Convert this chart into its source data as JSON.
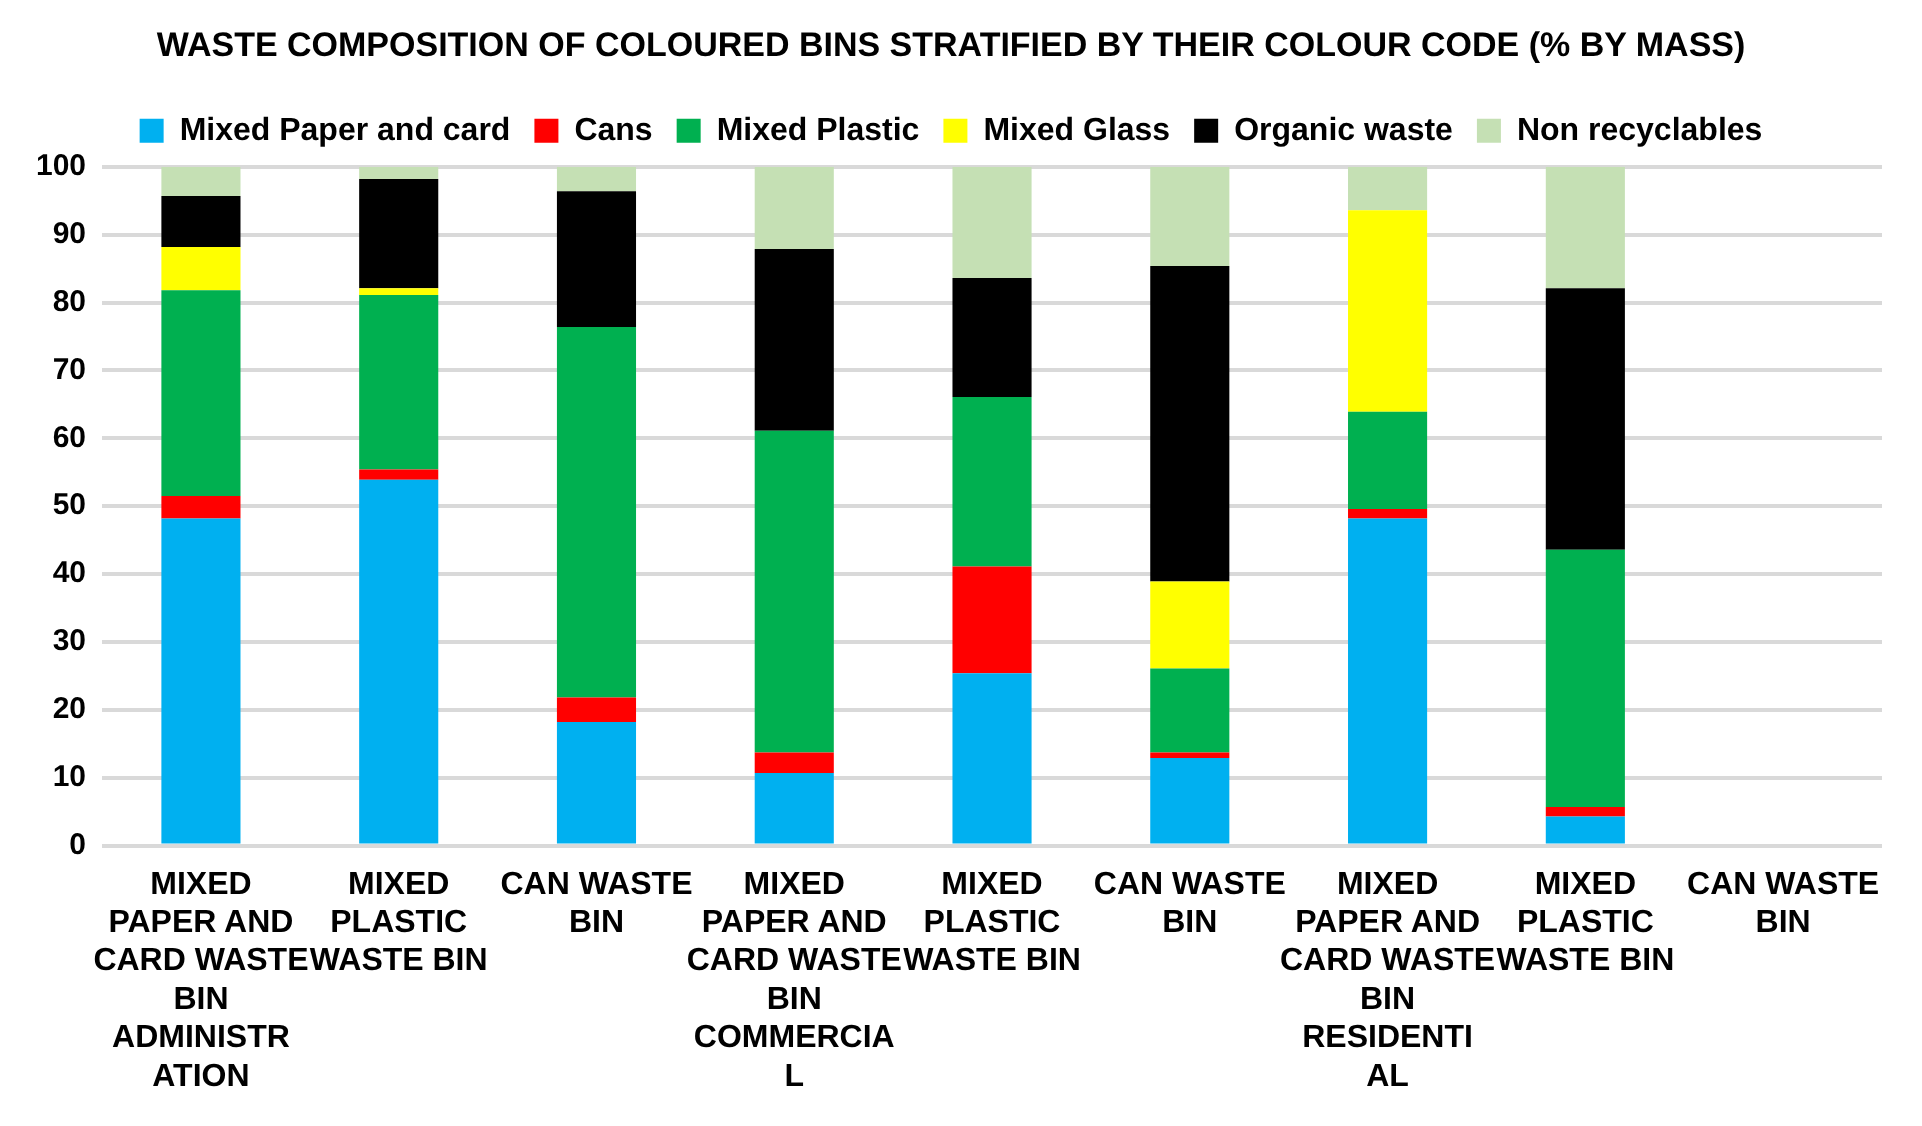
{
  "chart_data": {
    "type": "bar",
    "title": "WASTE COMPOSITION OF COLOURED BINS STRATIFIED BY THEIR COLOUR CODE (% BY MASS)",
    "categories": [
      "MIXED PAPER AND CARD WASTE BIN ADMINISTRATION",
      "MIXED PLASTIC WASTE BIN",
      "CAN WASTE BIN",
      "MIXED PAPER AND CARD WASTE BIN COMMERCIAL",
      "MIXED PLASTIC WASTE BIN",
      "CAN WASTE BIN",
      "MIXED PAPER AND CARD WASTE BIN RESIDENTIAL",
      "MIXED PLASTIC WASTE BIN",
      "CAN WASTE BIN"
    ],
    "stacked": true,
    "series": [
      {
        "name": "Mixed Paper and card",
        "color": "#00b0f0",
        "values": [
          48.2,
          53.9,
          18.2,
          10.7,
          25.4,
          12.9,
          48.2,
          4.3,
          null
        ]
      },
      {
        "name": "Cans",
        "color": "#ff0000",
        "values": [
          3.3,
          1.5,
          3.6,
          3.0,
          15.7,
          0.8,
          1.4,
          1.4,
          null
        ]
      },
      {
        "name": "Mixed Plastic",
        "color": "#00b050",
        "values": [
          30.3,
          25.7,
          54.6,
          47.4,
          25.0,
          12.4,
          14.3,
          37.9,
          null
        ]
      },
      {
        "name": "Mixed Glass",
        "color": "#ffff00",
        "values": [
          6.4,
          1.0,
          0,
          0,
          0,
          12.8,
          29.7,
          0,
          null
        ]
      },
      {
        "name": "Organic waste",
        "color": "#000000",
        "values": [
          7.5,
          16.1,
          20.0,
          26.8,
          17.5,
          46.5,
          0,
          38.5,
          null
        ]
      },
      {
        "name": "Non recyclables",
        "color": "#c5e0b4",
        "values": [
          4.3,
          1.8,
          3.6,
          12.1,
          16.4,
          14.6,
          6.4,
          17.9,
          null
        ]
      }
    ],
    "ylim": [
      0,
      100
    ],
    "yticks": [
      0,
      10,
      20,
      30,
      40,
      50,
      60,
      70,
      80,
      90,
      100
    ],
    "grid": "y",
    "legend": "top"
  }
}
